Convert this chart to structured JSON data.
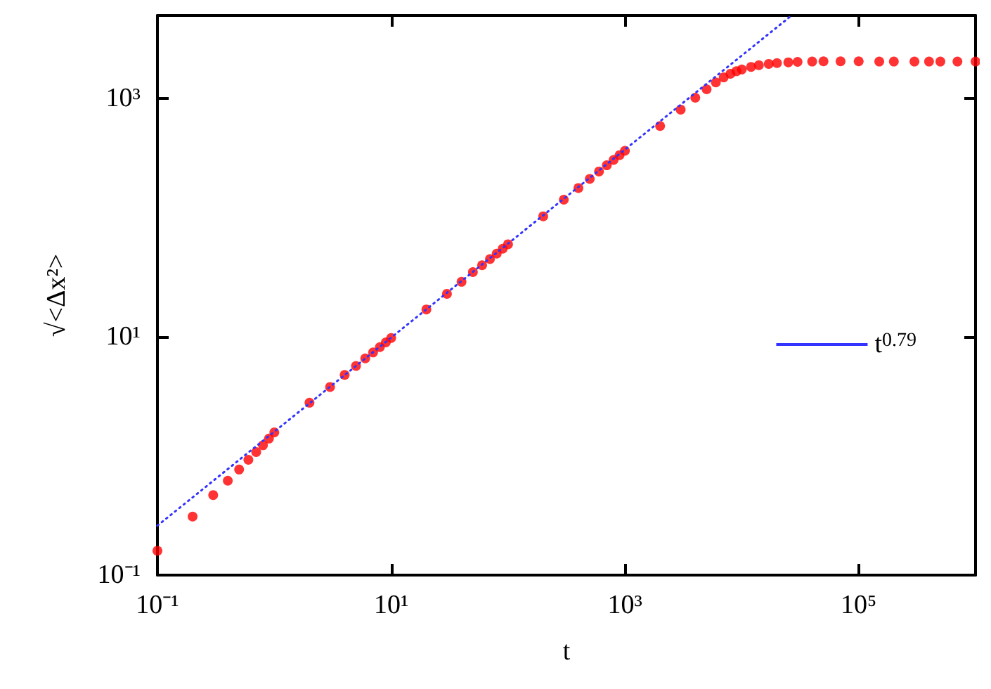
{
  "chart_data": {
    "type": "scatter",
    "xlabel": "t",
    "ylabel": "√<Δx²>",
    "log": "xy",
    "grid": false,
    "legend": "right",
    "marker": "circle",
    "xlim": [
      0.1,
      1000000
    ],
    "ylim": [
      0.1,
      5000
    ],
    "xticks": [
      {
        "value": 0.1,
        "label": "10⁻¹"
      },
      {
        "value": 10,
        "label": "10¹"
      },
      {
        "value": 1000,
        "label": "10³"
      },
      {
        "value": 100000,
        "label": "10⁵"
      }
    ],
    "yticks": [
      {
        "value": 0.1,
        "label": "10⁻¹"
      },
      {
        "value": 10,
        "label": "10¹"
      },
      {
        "value": 1000,
        "label": "10³"
      }
    ],
    "series": [
      {
        "color": "#ff0000",
        "x": [
          0.1,
          0.2,
          0.3,
          0.4,
          0.5,
          0.6,
          0.7,
          0.8,
          0.9,
          1,
          2,
          3,
          4,
          5,
          6,
          7,
          8,
          9,
          10,
          20,
          30,
          40,
          50,
          60,
          70,
          80,
          90,
          100,
          200,
          300,
          400,
          500,
          600,
          700,
          800,
          900,
          1000,
          2000,
          3000,
          4000,
          5000,
          6000,
          7000,
          8000,
          9000,
          10000,
          12000,
          14000,
          17000,
          20000,
          25000,
          30000,
          40000,
          50000,
          70000,
          100000,
          150000,
          200000,
          300000,
          400000,
          500000,
          700000,
          1000000
        ],
        "values": [
          0.16,
          0.31,
          0.47,
          0.62,
          0.77,
          0.93,
          1.08,
          1.23,
          1.4,
          1.58,
          2.8,
          3.8,
          4.8,
          5.7,
          6.6,
          7.4,
          8.2,
          9,
          9.8,
          17,
          23,
          29,
          35,
          40,
          45,
          50,
          55,
          60,
          103,
          142,
          178,
          212,
          245,
          276,
          306,
          336,
          365,
          590,
          810,
          1020,
          1200,
          1370,
          1510,
          1620,
          1700,
          1760,
          1850,
          1910,
          1960,
          1990,
          2020,
          2040,
          2050,
          2060,
          2060,
          2060,
          2050,
          2050,
          2050,
          2050,
          2050,
          2050,
          2050
        ]
      },
      {
        "type": "line",
        "name": "t$^{0.79}$",
        "color": "#3333ff",
        "line_style": "dotted",
        "marker": "none",
        "x": [
          0.1,
          26000
        ],
        "values": [
          0.26,
          4900
        ]
      }
    ]
  }
}
